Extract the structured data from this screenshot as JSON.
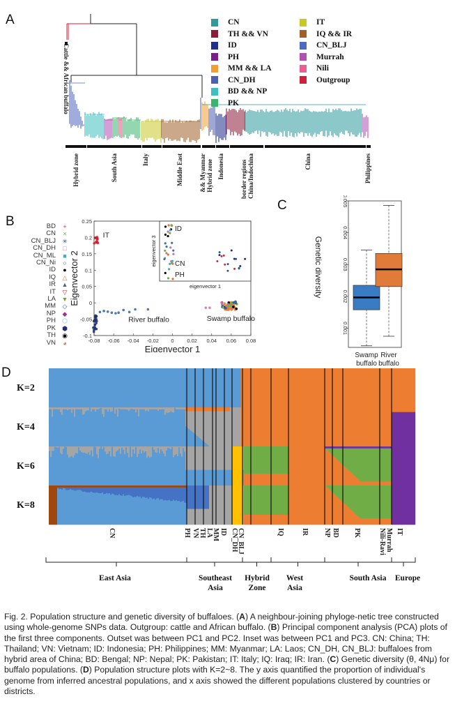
{
  "figure": {
    "panels": {
      "a": "A",
      "b": "B",
      "c": "C",
      "d": "D"
    }
  },
  "panel_a": {
    "outgroup_label": "Cattle && African buffalo",
    "legend_left": [
      {
        "label": "CN",
        "color": "#2e9a9e"
      },
      {
        "label": "TH && VN",
        "color": "#8b1d3a"
      },
      {
        "label": "ID",
        "color": "#1f2f8a"
      },
      {
        "label": "PH",
        "color": "#7a1f8a"
      },
      {
        "label": "MM && LA",
        "color": "#f0a030"
      },
      {
        "label": "CN_DH",
        "color": "#5060b0"
      },
      {
        "label": "BD && NP",
        "color": "#3fbfbf"
      },
      {
        "label": "PK",
        "color": "#3cb46e"
      }
    ],
    "legend_right": [
      {
        "label": "IT",
        "color": "#c8c828"
      },
      {
        "label": "IQ && IR",
        "color": "#a0622a"
      },
      {
        "label": "CN_BLJ",
        "color": "#5068c0"
      },
      {
        "label": "Murrah",
        "color": "#b050b0"
      },
      {
        "label": "Nili",
        "color": "#e86090"
      },
      {
        "label": "Outgroup",
        "color": "#d0203a"
      }
    ],
    "region_labels": [
      "Hybrid zone",
      "South Asia",
      "Italy",
      "Middle East",
      "Hybrid zone\n&& Myanmar",
      "Indonesia",
      "China/Indochina\nborder regions",
      "China",
      "Philippines"
    ]
  },
  "chart_data": [
    {
      "type": "scatter",
      "panel": "B",
      "title": "",
      "xlabel": "Eigenvector 1",
      "ylabel": "Eigenvector 2",
      "xlim": [
        -0.08,
        0.08
      ],
      "ylim": [
        -0.1,
        0.25
      ],
      "xticks": [
        "-0.08",
        "-0.06",
        "-0.04",
        "-0.02",
        "0",
        "0.02",
        "0.04",
        "0.06",
        "0.08"
      ],
      "yticks": [
        "-0.1",
        "-0.05",
        "0",
        "0.05",
        "0.1",
        "0.15",
        "0.2",
        "0.25"
      ],
      "annotations": [
        "IT",
        "River buffalo",
        "Swamp buffalo"
      ],
      "legend": [
        {
          "label": "BD",
          "symbol": "+",
          "color": "#c0304a"
        },
        {
          "label": "CN",
          "symbol": "×",
          "color": "#60b040"
        },
        {
          "label": "CN_BLJ",
          "symbol": "✳",
          "color": "#3050a0"
        },
        {
          "label": "CN_DH",
          "symbol": "□",
          "color": "#d070a0"
        },
        {
          "label": "CN_ML",
          "symbol": "■",
          "color": "#40a8c8"
        },
        {
          "label": "CN_Ni",
          "symbol": "○",
          "color": "#3060a0"
        },
        {
          "label": "ID",
          "symbol": "●",
          "color": "#000000"
        },
        {
          "label": "IQ",
          "symbol": "△",
          "color": "#e07030"
        },
        {
          "label": "IR",
          "symbol": "▲",
          "color": "#506080"
        },
        {
          "label": "IT",
          "symbol": "▽",
          "color": "#c03030"
        },
        {
          "label": "LA",
          "symbol": "▼",
          "color": "#70a030"
        },
        {
          "label": "MM",
          "symbol": "◇",
          "color": "#4060a0"
        },
        {
          "label": "NP",
          "symbol": "◆",
          "color": "#a03090"
        },
        {
          "label": "PH",
          "symbol": "⬡",
          "color": "#80c0e0"
        },
        {
          "label": "PK",
          "symbol": "⬢",
          "color": "#203070"
        },
        {
          "label": "TH",
          "symbol": "◉",
          "color": "#000000"
        },
        {
          "label": "VN",
          "symbol": "◕",
          "color": "#e07040"
        }
      ],
      "clusters": [
        {
          "name": "IT",
          "x": -0.078,
          "y": 0.19,
          "color": "#d02030",
          "n": 14,
          "spread": [
            0.002,
            0.012
          ]
        },
        {
          "name": "River buffalo core",
          "x": -0.079,
          "y": -0.06,
          "color": "#203070",
          "n": 22,
          "spread": [
            0.002,
            0.03
          ]
        },
        {
          "name": "River buffalo spread",
          "points": [
            [
              -0.074,
              -0.028
            ],
            [
              -0.07,
              -0.025
            ],
            [
              -0.066,
              -0.027
            ],
            [
              -0.062,
              -0.03
            ],
            [
              -0.058,
              -0.032
            ],
            [
              -0.055,
              -0.03
            ],
            [
              -0.05,
              -0.022
            ],
            [
              -0.044,
              -0.028
            ],
            [
              -0.038,
              -0.02
            ],
            [
              -0.025,
              -0.02
            ]
          ],
          "color": "#3060a0"
        },
        {
          "name": "Swamp buffalo",
          "x": 0.058,
          "y": -0.01,
          "color": "#e08030",
          "n": 40,
          "spread": [
            0.006,
            0.012
          ]
        },
        {
          "name": "CN_DH outliers",
          "points": [
            [
              0.034,
              -0.015
            ],
            [
              0.038,
              -0.015
            ]
          ],
          "color": "#d070a0"
        }
      ],
      "inset": {
        "xlabel": "eigenvector 1",
        "ylabel": "eigenvector 3",
        "annotations": [
          "ID",
          "CN",
          "PH"
        ]
      }
    },
    {
      "type": "box",
      "panel": "C",
      "title": "",
      "xlabel": "",
      "ylabel": "Genetic diversity",
      "ylim": [
        0.0004,
        0.005
      ],
      "yticks": [
        "0.001",
        "0.002",
        "0.003",
        "0.004",
        "0.005"
      ],
      "categories": [
        "Swamp\nbuffalo",
        "River\nbuffalo"
      ],
      "series": [
        {
          "name": "Swamp buffalo",
          "color": "#3a7cc4",
          "min": 0.00045,
          "q1": 0.00158,
          "median": 0.00197,
          "q3": 0.00235,
          "max": 0.00346
        },
        {
          "name": "River buffalo",
          "color": "#e07b39",
          "min": 0.00075,
          "q1": 0.00231,
          "median": 0.00285,
          "q3": 0.00335,
          "max": 0.00486
        }
      ]
    },
    {
      "type": "stacked-bar",
      "panel": "D",
      "title": "",
      "k_labels": [
        "K=2",
        "K=4",
        "K=6",
        "K=8"
      ],
      "populations": [
        "CN",
        "PH",
        "VN",
        "TH",
        "LA",
        "MM",
        "ID",
        "CN_DH",
        "CN_BLJ",
        "IQ",
        "IR",
        "NP",
        "BD",
        "PK",
        "Nili-Ravi",
        "Murrah",
        "IT"
      ],
      "population_labels": [
        "CN",
        "PH",
        "VN",
        "TH",
        "LA",
        "MM",
        "ID",
        "CN_DH",
        "CN_BLJ",
        "IQ",
        "IR",
        "NP",
        "BD",
        "PK",
        "Nili-Ravi",
        "Murrah",
        "IT"
      ],
      "regions": [
        {
          "label": "East Asia"
        },
        {
          "label": "Southeast\nAsia"
        },
        {
          "label": "Hybrid\nZone"
        },
        {
          "label": "West\nAsia"
        },
        {
          "label": "South Asia"
        },
        {
          "label": "Europe"
        }
      ],
      "colors": {
        "swamp_blue": "#5b9bd5",
        "river_orange": "#ed7d31",
        "grey": "#a5a5a5",
        "yellow": "#ffc000",
        "green": "#70ad47",
        "purple": "#7030a0",
        "dark_blue": "#4472c4",
        "brown": "#9e480e"
      }
    }
  ],
  "caption": {
    "segments": [
      {
        "t": "Fig. 2. Population structure and genetic diversity of buffaloes. ("
      },
      {
        "b": "A"
      },
      {
        "t": ") A neighbour-joining phyloge-netic tree constructed using whole-genome SNPs data. Outgroup: cattle and African buffalo. ("
      },
      {
        "b": "B"
      },
      {
        "t": ") Principal component analysis (PCA) plots of the first three components. Outset was between PC1 and PC2. Inset was between PC1 and PC3. CN: China; TH: Thailand; VN: Vietnam; ID: Indonesia; PH: Philippines; MM: Myanmar; LA: Laos; CN_DH, CN_BLJ: buffaloes from hybrid area of China; BD: Bengal; NP: Nepal; PK: Pakistan; IT: Italy; IQ: Iraq; IR: Iran. ("
      },
      {
        "b": "C"
      },
      {
        "t": ") Genetic diversity (θ, 4Nμ) for buffalo populations. ("
      },
      {
        "b": "D"
      },
      {
        "t": ") Population structure plots with K=2~8. The y axis quantified the proportion of individual's genome from inferred ancestral populations, and x axis showed the different populations clustered by countries or districts."
      }
    ]
  }
}
